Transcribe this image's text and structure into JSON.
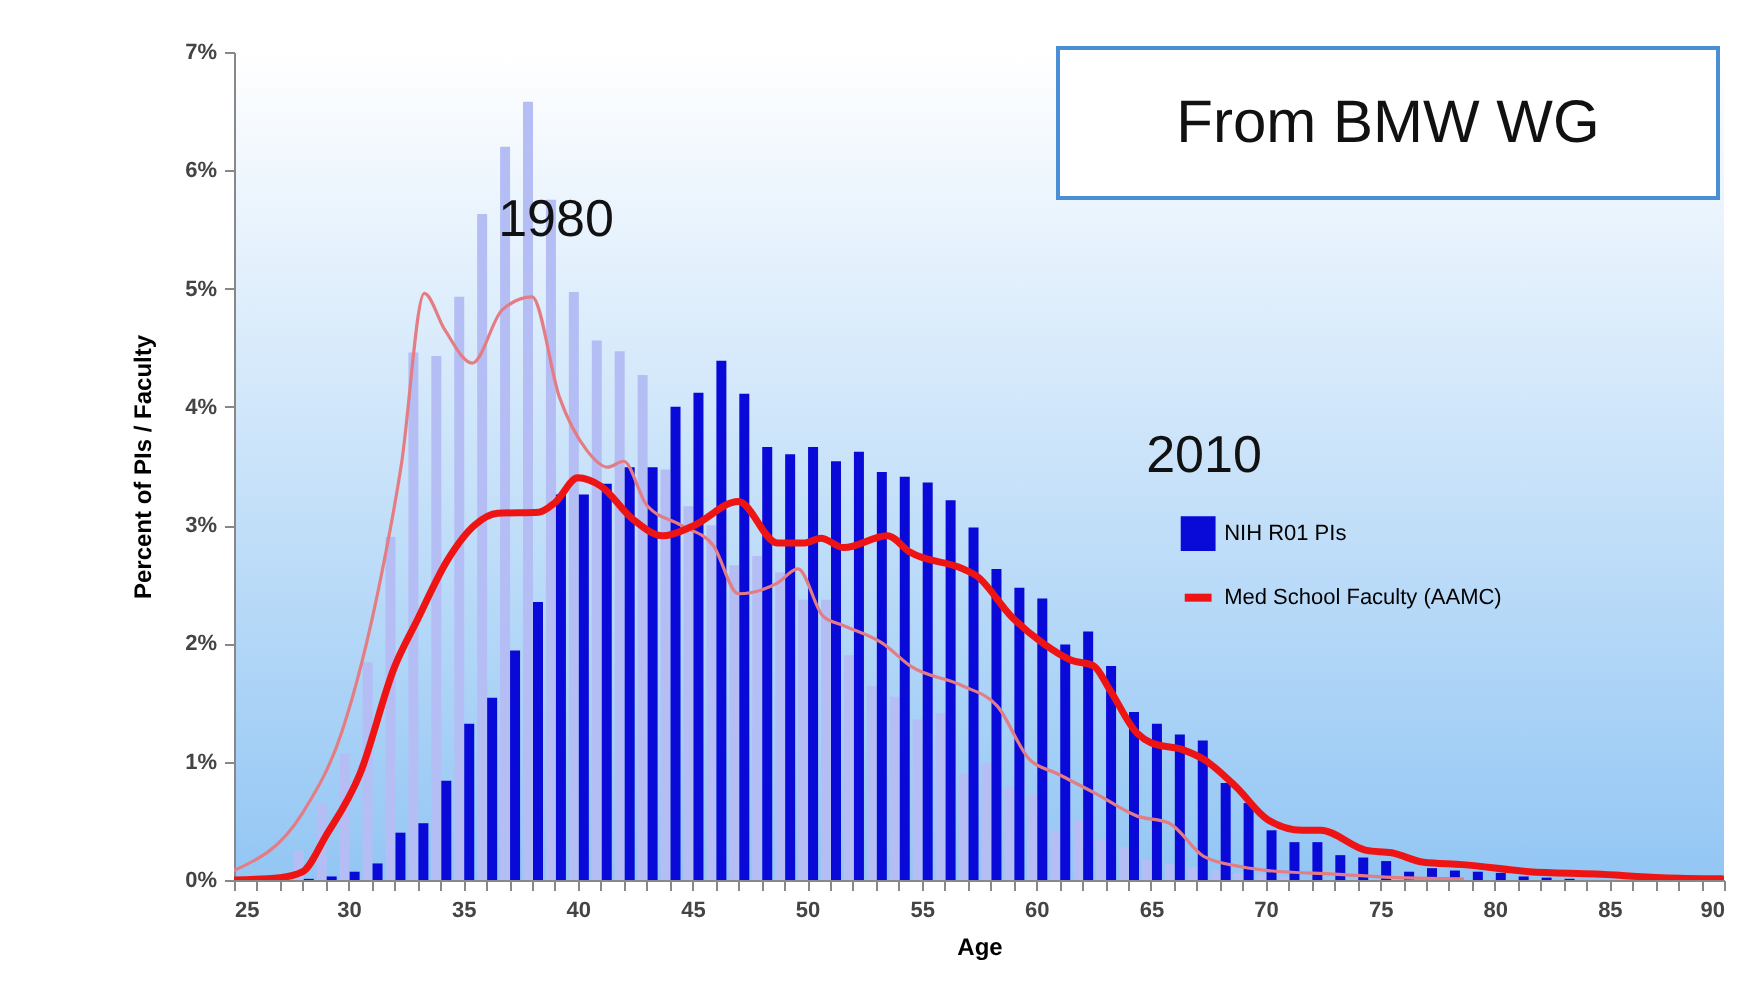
{
  "chart_data": {
    "type": "bar",
    "xlabel": "Age",
    "ylabel": "Percent of PIs / Faculty",
    "xlim": [
      25,
      90
    ],
    "ylim": [
      0,
      7
    ],
    "xticks": [
      25,
      {
        "value": 26,
        "label": null
      },
      {
        "value": 27,
        "label": null
      },
      {
        "value": 28,
        "label": null
      },
      {
        "value": 29,
        "label": null
      },
      30,
      {
        "value": 31,
        "label": null
      },
      {
        "value": 32,
        "label": null
      },
      {
        "value": 33,
        "label": null
      },
      {
        "value": 34,
        "label": null
      },
      35,
      {
        "value": 36,
        "label": null
      },
      {
        "value": 37,
        "label": null
      },
      {
        "value": 38,
        "label": null
      },
      {
        "value": 39,
        "label": null
      },
      40,
      {
        "value": 41,
        "label": null
      },
      {
        "value": 42,
        "label": null
      },
      {
        "value": 43,
        "label": null
      },
      {
        "value": 44,
        "label": null
      },
      45,
      {
        "value": 46,
        "label": null
      },
      {
        "value": 47,
        "label": null
      },
      {
        "value": 48,
        "label": null
      },
      {
        "value": 49,
        "label": null
      },
      50,
      {
        "value": 51,
        "label": null
      },
      {
        "value": 52,
        "label": null
      },
      {
        "value": 53,
        "label": null
      },
      {
        "value": 54,
        "label": null
      },
      55,
      {
        "value": 56,
        "label": null
      },
      {
        "value": 57,
        "label": null
      },
      {
        "value": 58,
        "label": null
      },
      {
        "value": 59,
        "label": null
      },
      60,
      {
        "value": 61,
        "label": null
      },
      {
        "value": 62,
        "label": null
      },
      {
        "value": 63,
        "label": null
      },
      {
        "value": 64,
        "label": null
      },
      65,
      {
        "value": 66,
        "label": null
      },
      {
        "value": 67,
        "label": null
      },
      {
        "value": 68,
        "label": null
      },
      {
        "value": 69,
        "label": null
      },
      70,
      {
        "value": 71,
        "label": null
      },
      {
        "value": 72,
        "label": null
      },
      {
        "value": 73,
        "label": null
      },
      {
        "value": 74,
        "label": null
      },
      75,
      {
        "value": 76,
        "label": null
      },
      {
        "value": 77,
        "label": null
      },
      {
        "value": 78,
        "label": null
      },
      {
        "value": 79,
        "label": null
      },
      80,
      {
        "value": 81,
        "label": null
      },
      {
        "value": 82,
        "label": null
      },
      {
        "value": 83,
        "label": null
      },
      {
        "value": 84,
        "label": null
      },
      85,
      {
        "value": 86,
        "label": null
      },
      {
        "value": 87,
        "label": null
      },
      {
        "value": 88,
        "label": null
      },
      {
        "value": 89,
        "label": null
      },
      90
    ],
    "yticks": [
      {
        "value": 0,
        "label": "0%"
      },
      {
        "value": 1,
        "label": "1%"
      },
      {
        "value": 2,
        "label": "2%"
      },
      {
        "value": 3,
        "label": "3%"
      },
      {
        "value": 4,
        "label": "4%"
      },
      {
        "value": 5,
        "label": "5%"
      },
      {
        "value": 6,
        "label": "6%"
      },
      {
        "value": 7,
        "label": "7%"
      }
    ],
    "grid": false,
    "legend": "right",
    "annotations": [
      "1980",
      "2010",
      "From BMW WG"
    ],
    "series": [
      {
        "color": "#b4bef4",
        "x": [
          28,
          29,
          30,
          31,
          32,
          33,
          34,
          35,
          36,
          37,
          38,
          39,
          40,
          41,
          42,
          43,
          44,
          45,
          46,
          47,
          48,
          49,
          50,
          51,
          52,
          53,
          54,
          55,
          56,
          57,
          58,
          59,
          60,
          61,
          62,
          63,
          64,
          65,
          66,
          67,
          68,
          69,
          70,
          71
        ],
        "values": [
          0.25,
          0.65,
          1.07,
          1.84,
          2.9,
          4.46,
          4.43,
          4.93,
          5.63,
          6.2,
          6.58,
          5.75,
          4.97,
          4.56,
          4.47,
          4.27,
          3.47,
          3.16,
          3.0,
          2.66,
          2.74,
          2.6,
          2.37,
          2.37,
          1.9,
          1.64,
          1.55,
          1.36,
          1.41,
          0.9,
          0.99,
          0.79,
          0.72,
          0.42,
          0.51,
          0.34,
          0.28,
          0.17,
          0.14,
          0.11,
          0.08,
          0.06,
          0.05,
          0.03
        ]
      },
      {
        "name": "NIH R01 PIs",
        "color": "#0a0ad8",
        "x": [
          28,
          29,
          30,
          31,
          32,
          33,
          34,
          35,
          36,
          37,
          38,
          39,
          40,
          41,
          42,
          43,
          44,
          45,
          46,
          47,
          48,
          49,
          50,
          51,
          52,
          53,
          54,
          55,
          56,
          57,
          58,
          59,
          60,
          61,
          62,
          63,
          64,
          65,
          66,
          67,
          68,
          69,
          70,
          71,
          72,
          73,
          74,
          75,
          76,
          77,
          78,
          79,
          80,
          81,
          82,
          83
        ],
        "values": [
          0.01,
          0.03,
          0.07,
          0.14,
          0.4,
          0.48,
          0.84,
          1.32,
          1.54,
          1.94,
          2.35,
          3.26,
          3.26,
          3.35,
          3.49,
          3.49,
          4.0,
          4.12,
          4.39,
          4.11,
          3.66,
          3.6,
          3.66,
          3.54,
          3.62,
          3.45,
          3.41,
          3.36,
          3.21,
          2.98,
          2.63,
          2.47,
          2.38,
          1.99,
          2.1,
          1.81,
          1.42,
          1.32,
          1.23,
          1.18,
          0.82,
          0.65,
          0.42,
          0.32,
          0.32,
          0.21,
          0.19,
          0.16,
          0.07,
          0.1,
          0.08,
          0.07,
          0.06,
          0.03,
          0.02,
          0.01
        ]
      },
      {
        "type": "line",
        "color": "#e47c84",
        "x": [
          25,
          28,
          29.7,
          31.4,
          32.3,
          33.3,
          34.2,
          35.4,
          36.7,
          38,
          39.2,
          40.4,
          41.3,
          42,
          43,
          44.5,
          45.9,
          47,
          48.7,
          49.6,
          50.7,
          51.6,
          53.3,
          54.5,
          56.8,
          58.3,
          59.7,
          60.9,
          62.6,
          64.4,
          65.8,
          67.3,
          69,
          70.1,
          73,
          75.8,
          78.6
        ],
        "values": [
          0.08,
          0.57,
          1.25,
          2.55,
          3.51,
          4.96,
          4.65,
          4.37,
          4.82,
          4.93,
          4.08,
          3.63,
          3.49,
          3.54,
          3.17,
          3.0,
          2.83,
          2.42,
          2.51,
          2.63,
          2.23,
          2.15,
          2.0,
          1.81,
          1.64,
          1.47,
          1.02,
          0.9,
          0.73,
          0.54,
          0.48,
          0.2,
          0.11,
          0.08,
          0.05,
          0.02,
          0.01
        ]
      },
      {
        "type": "line",
        "name": "Med School Faculty (AAMC)",
        "color": "#ee1414",
        "x": [
          25,
          27,
          28,
          29,
          30.5,
          32,
          33,
          34.3,
          35.5,
          36.5,
          38.3,
          39,
          40,
          41,
          42.4,
          43.7,
          45,
          47,
          48.7,
          49.9,
          50.6,
          51.6,
          53.5,
          54.5,
          56.8,
          57.4,
          58.9,
          60.3,
          61.5,
          62.5,
          63.2,
          64.4,
          65,
          66.4,
          67.3,
          68.7,
          70.1,
          71.6,
          72.4,
          74.4,
          75.5,
          76.9,
          78.6,
          81.5,
          84.4,
          87.3,
          89.9
        ],
        "values": [
          0,
          0.02,
          0.07,
          0.37,
          0.9,
          1.8,
          2.2,
          2.7,
          3.0,
          3.1,
          3.11,
          3.19,
          3.4,
          3.33,
          3.05,
          2.91,
          2.99,
          3.2,
          2.85,
          2.85,
          2.89,
          2.81,
          2.91,
          2.77,
          2.63,
          2.57,
          2.23,
          2.0,
          1.86,
          1.81,
          1.61,
          1.24,
          1.16,
          1.1,
          1.02,
          0.79,
          0.51,
          0.42,
          0.42,
          0.25,
          0.23,
          0.15,
          0.13,
          0.07,
          0.05,
          0.02,
          0.01
        ]
      }
    ]
  }
}
